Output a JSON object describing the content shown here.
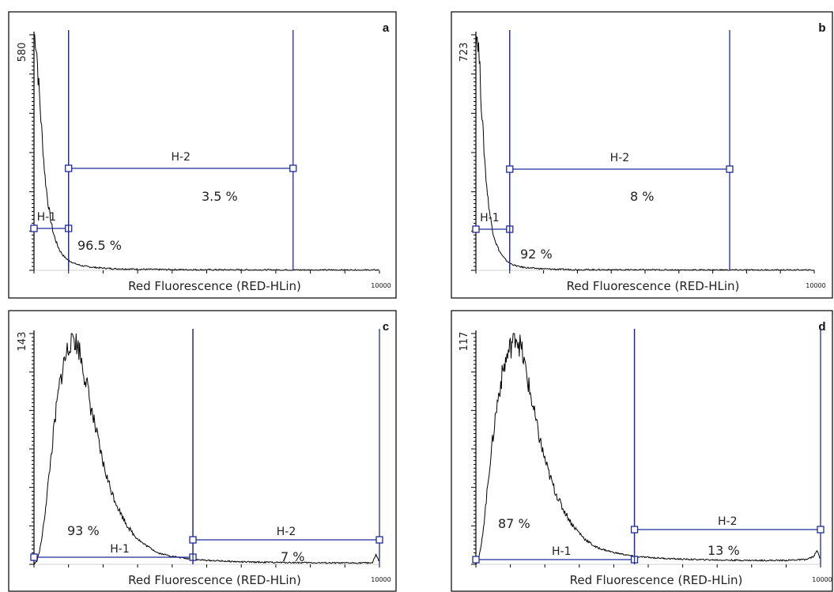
{
  "chart_data": [
    {
      "type": "line",
      "panel": "a",
      "xlabel": "Red Fluorescence (RED-HLin)",
      "x_max_label": "10000",
      "y_max_label": "580",
      "xlim": [
        0,
        10000
      ],
      "ylim": [
        0,
        580
      ],
      "gates": [
        {
          "name": "H-1",
          "range": [
            0,
            1000
          ],
          "percent": "96.5 %"
        },
        {
          "name": "H-2",
          "range": [
            1000,
            7500
          ],
          "percent": "3.5 %"
        }
      ],
      "series": [
        {
          "points": [
            [
              0,
              580
            ],
            [
              40,
              575
            ],
            [
              80,
              540
            ],
            [
              120,
              480
            ],
            [
              180,
              400
            ],
            [
              250,
              310
            ],
            [
              320,
              230
            ],
            [
              400,
              170
            ],
            [
              480,
              125
            ],
            [
              560,
              92
            ],
            [
              650,
              68
            ],
            [
              740,
              50
            ],
            [
              830,
              38
            ],
            [
              930,
              29
            ],
            [
              1050,
              22
            ],
            [
              1200,
              16
            ],
            [
              1400,
              11
            ],
            [
              1650,
              8
            ],
            [
              1900,
              6
            ],
            [
              2300,
              4
            ],
            [
              2800,
              3
            ],
            [
              3500,
              2
            ],
            [
              4500,
              1.5
            ],
            [
              6000,
              1
            ],
            [
              8000,
              0.8
            ],
            [
              10000,
              0.5
            ]
          ]
        }
      ]
    },
    {
      "type": "line",
      "panel": "b",
      "xlabel": "Red Fluorescence (RED-HLin)",
      "x_max_label": "10000",
      "y_max_label": "723",
      "xlim": [
        0,
        10000
      ],
      "ylim": [
        0,
        723
      ],
      "gates": [
        {
          "name": "H-1",
          "range": [
            0,
            1000
          ],
          "percent": "92 %"
        },
        {
          "name": "H-2",
          "range": [
            1000,
            7500
          ],
          "percent": "8 %"
        }
      ],
      "series": [
        {
          "points": [
            [
              0,
              723
            ],
            [
              30,
              723
            ],
            [
              60,
              710
            ],
            [
              100,
              650
            ],
            [
              150,
              540
            ],
            [
              210,
              420
            ],
            [
              280,
              310
            ],
            [
              350,
              225
            ],
            [
              430,
              160
            ],
            [
              510,
              115
            ],
            [
              600,
              82
            ],
            [
              700,
              58
            ],
            [
              800,
              42
            ],
            [
              900,
              30
            ],
            [
              1000,
              22
            ],
            [
              1150,
              15
            ],
            [
              1350,
              10
            ],
            [
              1600,
              7
            ],
            [
              1900,
              5
            ],
            [
              2400,
              3
            ],
            [
              3000,
              2
            ],
            [
              4000,
              1.5
            ],
            [
              6000,
              1
            ],
            [
              8000,
              0.8
            ],
            [
              10000,
              0.5
            ]
          ]
        }
      ]
    },
    {
      "type": "line",
      "panel": "c",
      "xlabel": "Red Fluorescence (RED-HLin)",
      "x_max_label": "10000",
      "y_max_label": "143",
      "xlim": [
        0,
        10000
      ],
      "ylim": [
        0,
        143
      ],
      "gates": [
        {
          "name": "H-1",
          "range": [
            0,
            4600
          ],
          "percent": "93 %"
        },
        {
          "name": "H-2",
          "range": [
            4600,
            10000
          ],
          "percent": "7 %"
        }
      ],
      "series": [
        {
          "points": [
            [
              0,
              0
            ],
            [
              80,
              2
            ],
            [
              160,
              8
            ],
            [
              240,
              18
            ],
            [
              320,
              32
            ],
            [
              400,
              48
            ],
            [
              480,
              64
            ],
            [
              560,
              80
            ],
            [
              640,
              95
            ],
            [
              720,
              108
            ],
            [
              800,
              118
            ],
            [
              880,
              126
            ],
            [
              960,
              132
            ],
            [
              1040,
              138
            ],
            [
              1100,
              142
            ],
            [
              1160,
              141
            ],
            [
              1220,
              137
            ],
            [
              1300,
              134
            ],
            [
              1380,
              126
            ],
            [
              1460,
              118
            ],
            [
              1540,
              110
            ],
            [
              1620,
              100
            ],
            [
              1700,
              92
            ],
            [
              1780,
              84
            ],
            [
              1860,
              76
            ],
            [
              1940,
              68
            ],
            [
              2020,
              61
            ],
            [
              2100,
              55
            ],
            [
              2200,
              48
            ],
            [
              2300,
              42
            ],
            [
              2400,
              37
            ],
            [
              2500,
              32
            ],
            [
              2600,
              28
            ],
            [
              2700,
              24
            ],
            [
              2800,
              21
            ],
            [
              2900,
              18
            ],
            [
              3000,
              16
            ],
            [
              3150,
              13
            ],
            [
              3300,
              11
            ],
            [
              3450,
              9
            ],
            [
              3600,
              7
            ],
            [
              3800,
              6
            ],
            [
              4000,
              5
            ],
            [
              4300,
              4
            ],
            [
              4600,
              3
            ],
            [
              5000,
              2.5
            ],
            [
              5500,
              2
            ],
            [
              6000,
              1.5
            ],
            [
              7000,
              1.2
            ],
            [
              8000,
              1
            ],
            [
              9000,
              0.8
            ],
            [
              9800,
              1
            ],
            [
              9900,
              6
            ],
            [
              10000,
              1
            ]
          ]
        }
      ]
    },
    {
      "type": "line",
      "panel": "d",
      "xlabel": "Red Fluorescence (RED-HLin)",
      "x_max_label": "10000",
      "y_max_label": "117",
      "xlim": [
        0,
        10000
      ],
      "ylim": [
        0,
        117
      ],
      "gates": [
        {
          "name": "H-1",
          "range": [
            0,
            4600
          ],
          "percent": "87 %"
        },
        {
          "name": "H-2",
          "range": [
            4600,
            10000
          ],
          "percent": "13 %"
        }
      ],
      "series": [
        {
          "points": [
            [
              0,
              0
            ],
            [
              80,
              3
            ],
            [
              160,
              10
            ],
            [
              240,
              22
            ],
            [
              320,
              36
            ],
            [
              400,
              50
            ],
            [
              480,
              62
            ],
            [
              560,
              74
            ],
            [
              640,
              84
            ],
            [
              720,
              92
            ],
            [
              800,
              99
            ],
            [
              880,
              104
            ],
            [
              960,
              108
            ],
            [
              1040,
              112
            ],
            [
              1100,
              116
            ],
            [
              1160,
              117
            ],
            [
              1220,
              114
            ],
            [
              1300,
              110
            ],
            [
              1380,
              104
            ],
            [
              1460,
              97
            ],
            [
              1540,
              90
            ],
            [
              1620,
              83
            ],
            [
              1700,
              76
            ],
            [
              1780,
              69
            ],
            [
              1860,
              63
            ],
            [
              1940,
              57
            ],
            [
              2020,
              52
            ],
            [
              2100,
              47
            ],
            [
              2200,
              42
            ],
            [
              2300,
              37
            ],
            [
              2400,
              33
            ],
            [
              2500,
              29
            ],
            [
              2600,
              26
            ],
            [
              2700,
              23
            ],
            [
              2800,
              20
            ],
            [
              2900,
              18
            ],
            [
              3000,
              16
            ],
            [
              3150,
              13
            ],
            [
              3300,
              11
            ],
            [
              3450,
              9
            ],
            [
              3600,
              8
            ],
            [
              3800,
              7
            ],
            [
              4000,
              6
            ],
            [
              4300,
              5
            ],
            [
              4600,
              4
            ],
            [
              5000,
              3.5
            ],
            [
              5500,
              3
            ],
            [
              6000,
              2.6
            ],
            [
              7000,
              2.2
            ],
            [
              8000,
              2
            ],
            [
              9000,
              2
            ],
            [
              9600,
              2.5
            ],
            [
              9800,
              4
            ],
            [
              9900,
              7
            ],
            [
              10000,
              2
            ]
          ]
        }
      ]
    }
  ]
}
